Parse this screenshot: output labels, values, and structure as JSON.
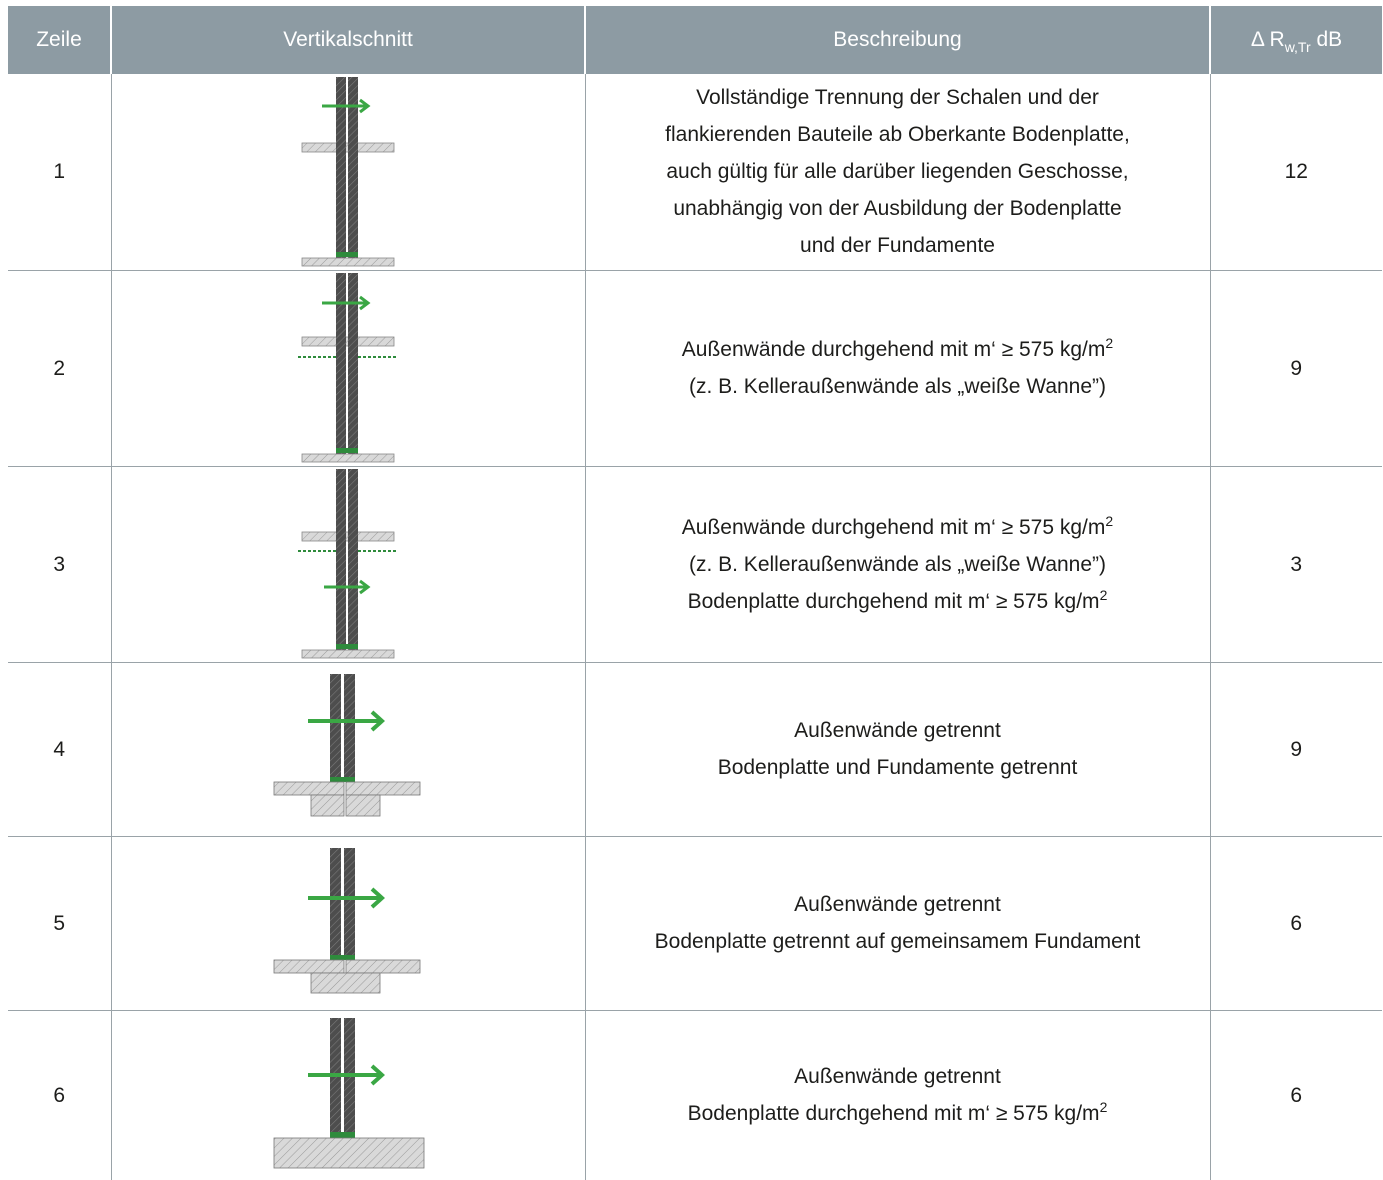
{
  "header": {
    "col_zeile": "Zeile",
    "col_schnitt": "Vertikalschnitt",
    "col_beschreibung": "Beschreibung",
    "col_db_prefix": "Δ R",
    "col_db_sub": "w,Tr",
    "col_db_unit": " dB"
  },
  "rows": [
    {
      "zeile": "1",
      "lines": [
        {
          "text": "Vollständige Trennung der Schalen und der"
        },
        {
          "text": "flankierenden Bauteile ab Oberkante Bodenplatte,"
        },
        {
          "text": "auch gültig für alle darüber liegenden Geschosse,"
        },
        {
          "text": "unabhängig von der Ausbildung der Bodenplatte"
        },
        {
          "text": "und der Fundamente"
        }
      ],
      "db": "12"
    },
    {
      "zeile": "2",
      "lines": [
        {
          "text": "Außenwände durchgehend mit m‘ ≥ 575 kg/m",
          "sup": "2"
        },
        {
          "text": "(z. B. Kelleraußenwände als „weiße Wanne”)"
        }
      ],
      "db": "9"
    },
    {
      "zeile": "3",
      "lines": [
        {
          "text": "Außenwände durchgehend mit m‘ ≥ 575 kg/m",
          "sup": "2"
        },
        {
          "text": "(z. B. Kelleraußenwände als „weiße Wanne”)"
        },
        {
          "text": "Bodenplatte durchgehend mit m‘ ≥ 575 kg/m",
          "sup": "2"
        }
      ],
      "db": "3"
    },
    {
      "zeile": "4",
      "lines": [
        {
          "text": "Außenwände getrennt"
        },
        {
          "text": "Bodenplatte und Fundamente getrennt"
        }
      ],
      "db": "9"
    },
    {
      "zeile": "5",
      "lines": [
        {
          "text": "Außenwände getrennt"
        },
        {
          "text": "Bodenplatte getrennt auf gemeinsamem Fundament"
        }
      ],
      "db": "6"
    },
    {
      "zeile": "6",
      "lines": [
        {
          "text": "Außenwände getrennt"
        },
        {
          "text": "Bodenplatte durchgehend mit m‘ ≥ 575 kg/m",
          "sup": "2"
        }
      ],
      "db": "6"
    }
  ],
  "colors": {
    "header_bg": "#8d9ba3",
    "wall": "#505050",
    "slab": "#d2d2d2",
    "arrow": "#3aa744",
    "joint": "#2e8b3c"
  }
}
